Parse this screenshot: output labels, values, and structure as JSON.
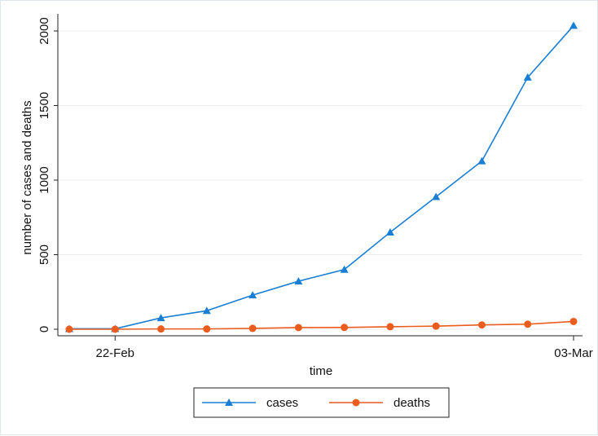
{
  "chart_data": {
    "type": "line",
    "xlabel": "time",
    "ylabel": "number of cases and deaths",
    "x": [
      "21-Feb",
      "22-Feb",
      "23-Feb",
      "24-Feb",
      "25-Feb",
      "26-Feb",
      "27-Feb",
      "28-Feb",
      "29-Feb",
      "01-Mar",
      "02-Mar",
      "03-Mar"
    ],
    "x_tick_labels": [
      "22-Feb",
      "03-Mar"
    ],
    "y_ticks": [
      0,
      500,
      1000,
      1500,
      2000
    ],
    "ylim": [
      0,
      2100
    ],
    "grid": true,
    "legend_position": "bottom",
    "series": [
      {
        "name": "cases",
        "color": "#1a7fd4",
        "marker": "triangle",
        "values": [
          3,
          3,
          76,
          124,
          229,
          322,
          400,
          650,
          888,
          1128,
          1689,
          2036
        ]
      },
      {
        "name": "deaths",
        "color": "#ea5d1f",
        "marker": "circle",
        "values": [
          0,
          0,
          2,
          2,
          6,
          11,
          12,
          17,
          21,
          29,
          34,
          52
        ]
      }
    ]
  }
}
